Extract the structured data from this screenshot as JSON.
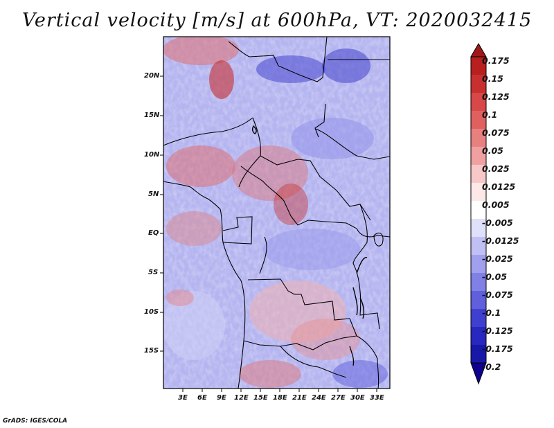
{
  "title": "Vertical velocity [m/s] at 600hPa, VT: 2020032415",
  "footer": "GrADS: IGES/COLA",
  "map": {
    "variable": "Vertical velocity",
    "units": "m/s",
    "level": "600hPa",
    "valid_time": "2020032415",
    "lat_range": [
      -20,
      25
    ],
    "lon_range": [
      0,
      35
    ],
    "lat_ticks": [
      "20N",
      "15N",
      "10N",
      "5N",
      "EQ",
      "5S",
      "10S",
      "15S"
    ],
    "lon_ticks": [
      "3E",
      "6E",
      "9E",
      "12E",
      "15E",
      "18E",
      "21E",
      "24E",
      "27E",
      "30E",
      "33E"
    ]
  },
  "colorbar": {
    "labels": [
      "0.175",
      "0.15",
      "0.125",
      "0.1",
      "0.075",
      "0.05",
      "0.025",
      "0.0125",
      "0.005",
      "-0.005",
      "-0.0125",
      "-0.025",
      "-0.05",
      "-0.075",
      "-0.1",
      "-0.125",
      "-0.175",
      "-0.2"
    ],
    "colors": [
      "#a01818",
      "#b82020",
      "#c83030",
      "#d84848",
      "#e06060",
      "#e88080",
      "#f0a0a0",
      "#f8c8c8",
      "#fde8e8",
      "#ffffff",
      "#e0e0fa",
      "#c0c0f4",
      "#a0a0ee",
      "#8080e6",
      "#6060dc",
      "#4040d0",
      "#2828c0",
      "#1818a8",
      "#100090"
    ]
  }
}
